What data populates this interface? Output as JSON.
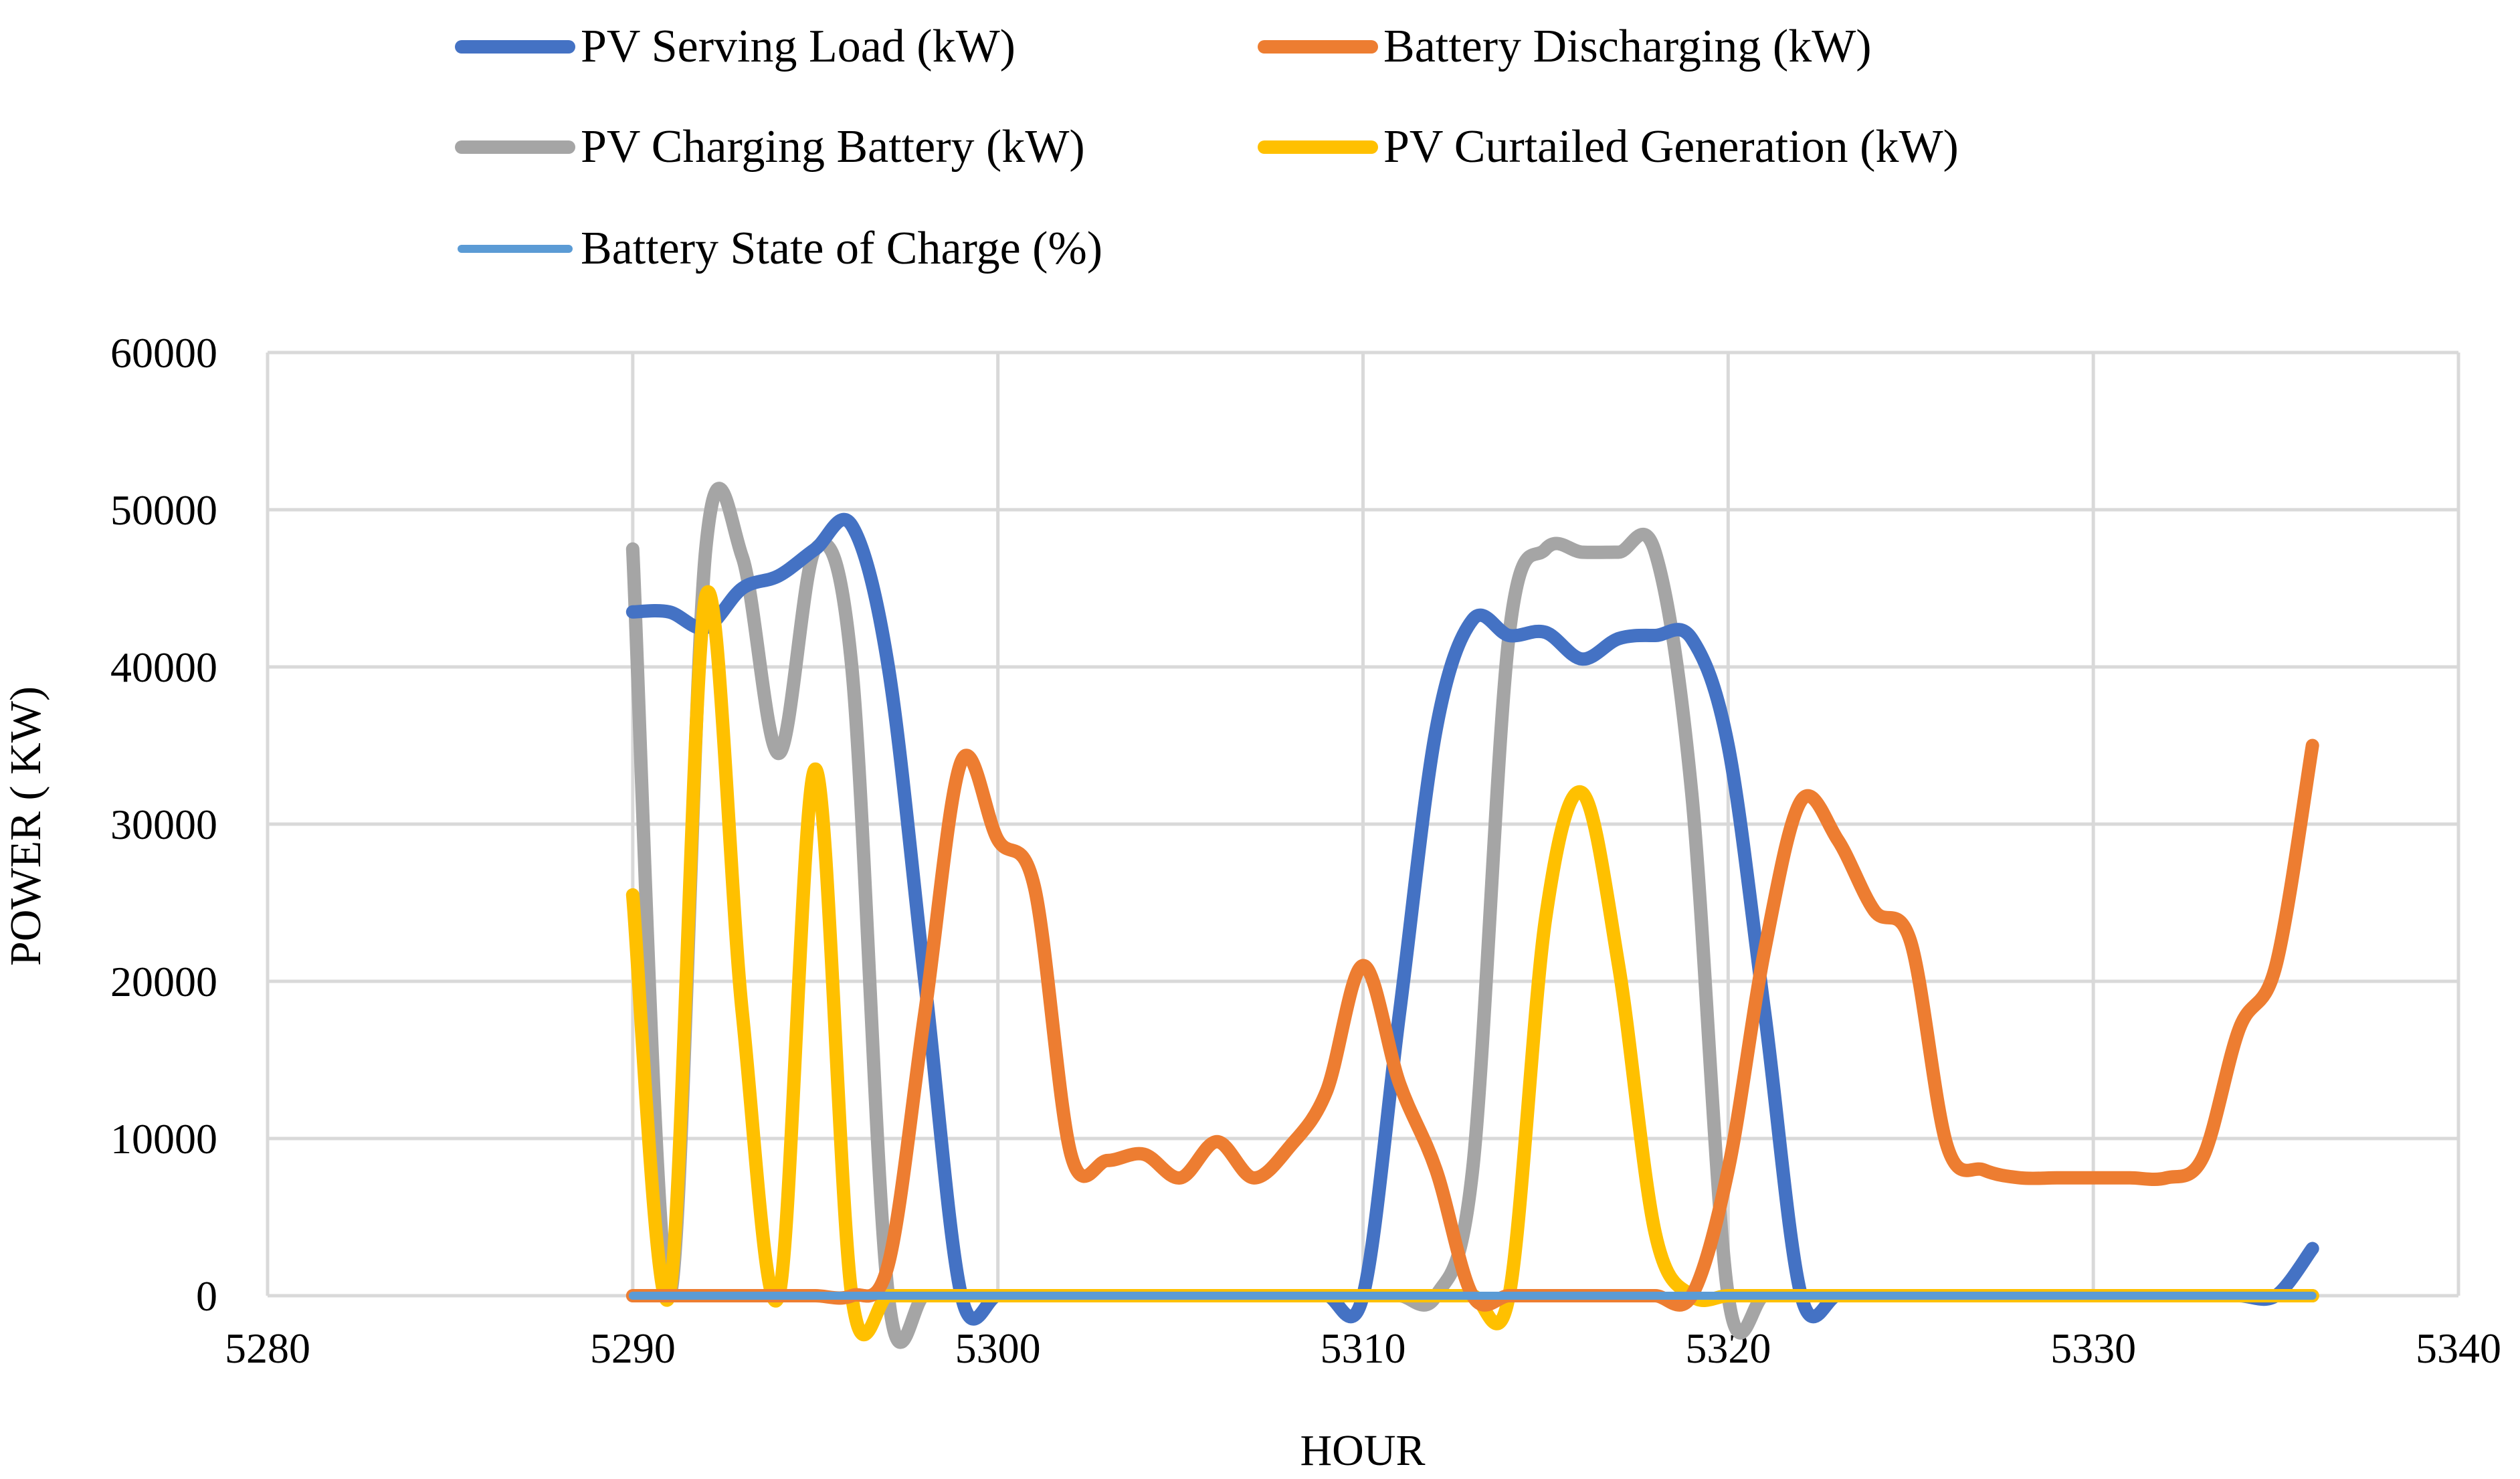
{
  "chart_data": {
    "type": "line",
    "title": "",
    "xlabel": "HOUR",
    "ylabel": "POWER ( KW)",
    "xlim": [
      5280,
      5340
    ],
    "ylim": [
      0,
      60000
    ],
    "x_ticks": [
      5280,
      5290,
      5300,
      5310,
      5320,
      5330,
      5340
    ],
    "y_ticks": [
      0,
      10000,
      20000,
      30000,
      40000,
      50000,
      60000
    ],
    "grid": true,
    "legend_position": "top",
    "x": [
      5290,
      5291,
      5292,
      5293,
      5294,
      5295,
      5296,
      5297,
      5298,
      5299,
      5300,
      5301,
      5302,
      5303,
      5304,
      5305,
      5306,
      5307,
      5308,
      5309,
      5310,
      5311,
      5312,
      5313,
      5314,
      5315,
      5316,
      5317,
      5318,
      5319,
      5320,
      5321,
      5322,
      5323,
      5324,
      5325,
      5326,
      5327,
      5328,
      5329,
      5330,
      5331,
      5332,
      5333,
      5334,
      5335,
      5336
    ],
    "series": [
      {
        "name": "PV Serving Load (kW)",
        "color": "#4472C4",
        "values": [
          43500,
          43500,
          42500,
          45000,
          45800,
          47500,
          49000,
          40000,
          20000,
          0,
          0,
          0,
          0,
          0,
          0,
          0,
          0,
          0,
          0,
          0,
          0,
          18000,
          36000,
          43000,
          42000,
          42200,
          40500,
          41800,
          42000,
          41800,
          35000,
          18000,
          0,
          0,
          0,
          0,
          0,
          0,
          0,
          0,
          0,
          0,
          0,
          0,
          0,
          0,
          3000
        ]
      },
      {
        "name": "Battery Discharging (kW)",
        "color": "#ED7D31",
        "values": [
          0,
          0,
          0,
          0,
          0,
          0,
          0,
          2000,
          18000,
          34000,
          29000,
          26000,
          9000,
          8600,
          9000,
          7500,
          9800,
          7500,
          9500,
          13000,
          21000,
          13500,
          8000,
          0,
          0,
          0,
          0,
          0,
          0,
          0,
          8000,
          22000,
          31500,
          29000,
          24500,
          22500,
          9500,
          8000,
          7500,
          7500,
          7500,
          7500,
          7500,
          8800,
          17000,
          21000,
          35000
        ]
      },
      {
        "name": "PV Charging Battery (kW)",
        "color": "#A5A5A5",
        "values": [
          47500,
          0,
          47500,
          47000,
          34500,
          47500,
          40000,
          0,
          0,
          0,
          0,
          0,
          0,
          0,
          0,
          0,
          0,
          0,
          0,
          0,
          0,
          0,
          0,
          8000,
          42000,
          47500,
          47300,
          47300,
          47300,
          32000,
          0,
          0,
          0,
          0,
          0,
          0,
          0,
          0,
          0,
          0,
          0,
          0,
          0,
          0,
          0,
          0,
          0
        ]
      },
      {
        "name": "PV Curtailed Generation (kW)",
        "color": "#FFC000",
        "values": [
          25500,
          0,
          44500,
          18000,
          0,
          33500,
          0,
          0,
          0,
          0,
          0,
          0,
          0,
          0,
          0,
          0,
          0,
          0,
          0,
          0,
          0,
          0,
          0,
          0,
          0,
          24000,
          32000,
          21000,
          4000,
          0,
          0,
          0,
          0,
          0,
          0,
          0,
          0,
          0,
          0,
          0,
          0,
          0,
          0,
          0,
          0,
          0,
          0
        ]
      },
      {
        "name": "Battery State of Charge (%)",
        "color": "#5B9BD5",
        "values": [
          0,
          0,
          0,
          0,
          0,
          0,
          0,
          0,
          0,
          0,
          0,
          0,
          0,
          0,
          0,
          0,
          0,
          0,
          0,
          0,
          0,
          0,
          0,
          0,
          0,
          0,
          0,
          0,
          0,
          0,
          0,
          0,
          0,
          0,
          0,
          0,
          0,
          0,
          0,
          0,
          0,
          0,
          0,
          0,
          0,
          0,
          0
        ]
      }
    ]
  }
}
